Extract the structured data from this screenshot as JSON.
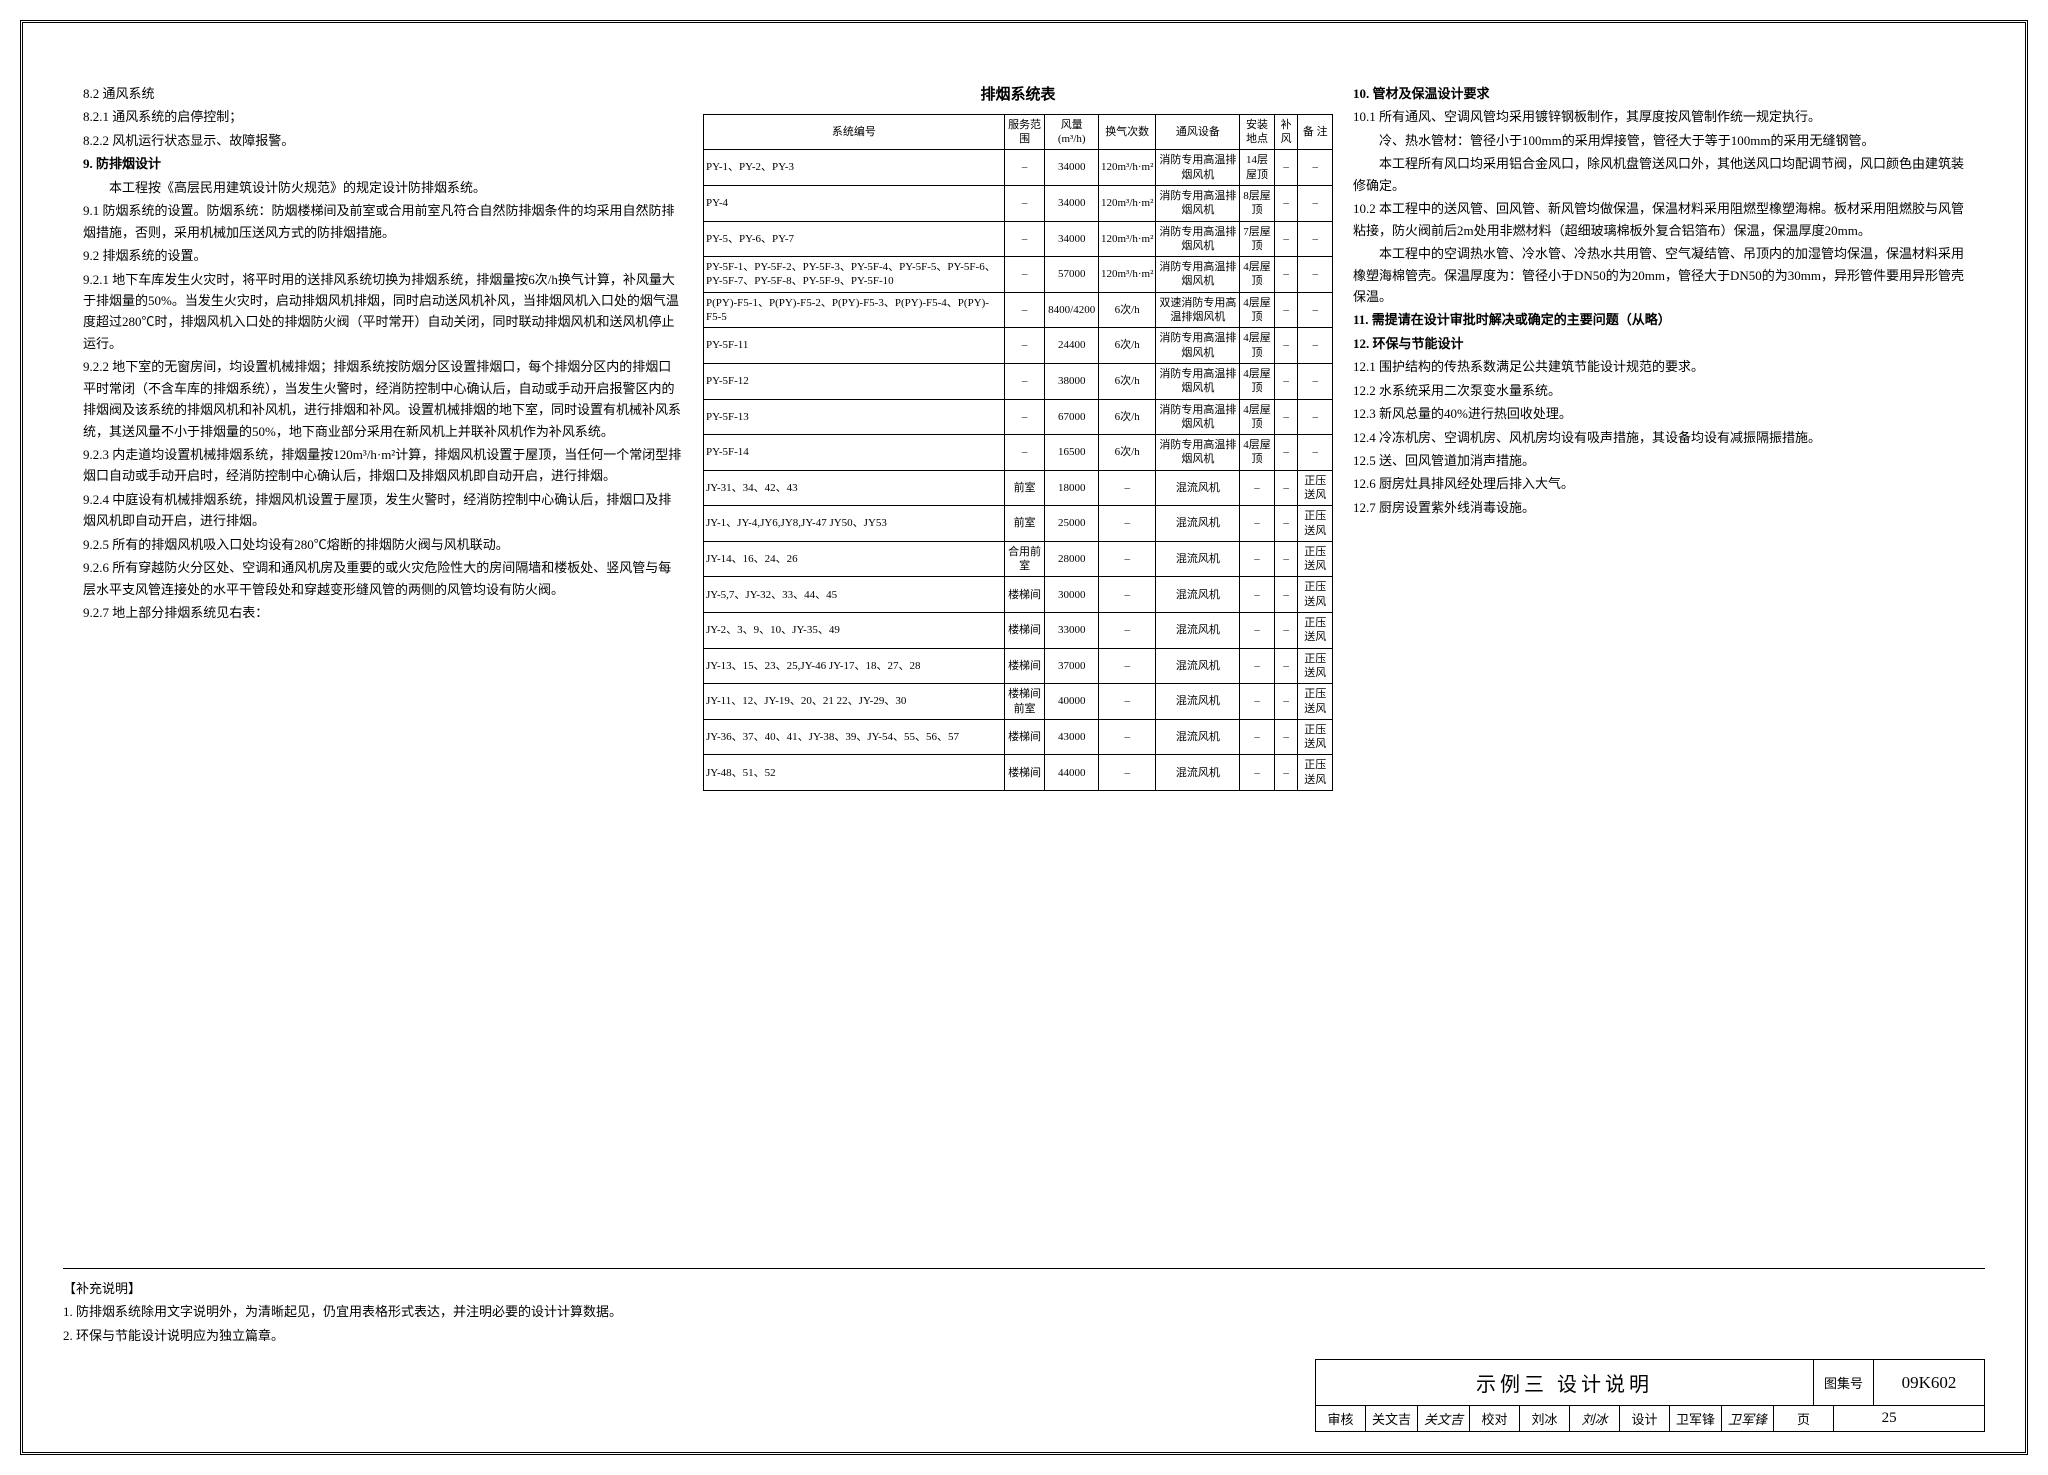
{
  "leftColumn": {
    "lines": [
      "8.2 通风系统",
      "8.2.1 通风系统的启停控制；",
      "8.2.2 风机运行状态显示、故障报警。",
      "9. 防排烟设计",
      "　　本工程按《高层民用建筑设计防火规范》的规定设计防排烟系统。",
      "9.1 防烟系统的设置。防烟系统：防烟楼梯间及前室或合用前室凡符合自然防排烟条件的均采用自然防排烟措施，否则，采用机械加压送风方式的防排烟措施。",
      "9.2 排烟系统的设置。",
      "9.2.1 地下车库发生火灾时，将平时用的送排风系统切换为排烟系统，排烟量按6次/h换气计算，补风量大于排烟量的50%。当发生火灾时，启动排烟风机排烟，同时启动送风机补风，当排烟风机入口处的烟气温度超过280℃时，排烟风机入口处的排烟防火阀（平时常开）自动关闭，同时联动排烟风机和送风机停止运行。",
      "9.2.2 地下室的无窗房间，均设置机械排烟；排烟系统按防烟分区设置排烟口，每个排烟分区内的排烟口平时常闭（不含车库的排烟系统），当发生火警时，经消防控制中心确认后，自动或手动开启报警区内的排烟阀及该系统的排烟风机和补风机，进行排烟和补风。设置机械排烟的地下室，同时设置有机械补风系统，其送风量不小于排烟量的50%，地下商业部分采用在新风机上并联补风机作为补风系统。",
      "9.2.3 内走道均设置机械排烟系统，排烟量按120m³/h·m²计算，排烟风机设置于屋顶，当任何一个常闭型排烟口自动或手动开启时，经消防控制中心确认后，排烟口及排烟风机即自动开启，进行排烟。",
      "9.2.4 中庭设有机械排烟系统，排烟风机设置于屋顶，发生火警时，经消防控制中心确认后，排烟口及排烟风机即自动开启，进行排烟。",
      "9.2.5 所有的排烟风机吸入口处均设有280℃熔断的排烟防火阀与风机联动。",
      "9.2.6 所有穿越防火分区处、空调和通风机房及重要的或火灾危险性大的房间隔墙和楼板处、竖风管与每层水平支风管连接处的水平干管段处和穿越变形缝风管的两侧的风管均设有防火阀。",
      "9.2.7 地上部分排烟系统见右表："
    ],
    "boldIdx": [
      3
    ]
  },
  "table": {
    "title": "排烟系统表",
    "headers": [
      "系统编号",
      "服务范围",
      "风量(m³/h)",
      "换气次数",
      "通风设备",
      "安装地点",
      "补 风",
      "备 注"
    ],
    "rows": [
      [
        "PY-1、PY-2、PY-3",
        "–",
        "34000",
        "120m³/h·m²",
        "消防专用高温排烟风机",
        "14层屋顶",
        "–",
        "–"
      ],
      [
        "PY-4",
        "–",
        "34000",
        "120m³/h·m²",
        "消防专用高温排烟风机",
        "8层屋顶",
        "–",
        "–"
      ],
      [
        "PY-5、PY-6、PY-7",
        "–",
        "34000",
        "120m³/h·m²",
        "消防专用高温排烟风机",
        "7层屋顶",
        "–",
        "–"
      ],
      [
        "PY-5F-1、PY-5F-2、PY-5F-3、PY-5F-4、PY-5F-5、PY-5F-6、PY-5F-7、PY-5F-8、PY-5F-9、PY-5F-10",
        "–",
        "57000",
        "120m³/h·m²",
        "消防专用高温排烟风机",
        "4层屋顶",
        "–",
        "–"
      ],
      [
        "P(PY)-F5-1、P(PY)-F5-2、P(PY)-F5-3、P(PY)-F5-4、P(PY)-F5-5",
        "–",
        "8400/4200",
        "6次/h",
        "双速消防专用高温排烟风机",
        "4层屋顶",
        "–",
        "–"
      ],
      [
        "PY-5F-11",
        "–",
        "24400",
        "6次/h",
        "消防专用高温排烟风机",
        "4层屋顶",
        "–",
        "–"
      ],
      [
        "PY-5F-12",
        "–",
        "38000",
        "6次/h",
        "消防专用高温排烟风机",
        "4层屋顶",
        "–",
        "–"
      ],
      [
        "PY-5F-13",
        "–",
        "67000",
        "6次/h",
        "消防专用高温排烟风机",
        "4层屋顶",
        "–",
        "–"
      ],
      [
        "PY-5F-14",
        "–",
        "16500",
        "6次/h",
        "消防专用高温排烟风机",
        "4层屋顶",
        "–",
        "–"
      ],
      [
        "JY-31、34、42、43",
        "前室",
        "18000",
        "–",
        "混流风机",
        "–",
        "–",
        "正压送风"
      ],
      [
        "JY-1、JY-4,JY6,JY8,JY-47 JY50、JY53",
        "前室",
        "25000",
        "–",
        "混流风机",
        "–",
        "–",
        "正压送风"
      ],
      [
        "JY-14、16、24、26",
        "合用前室",
        "28000",
        "–",
        "混流风机",
        "–",
        "–",
        "正压送风"
      ],
      [
        "JY-5,7、JY-32、33、44、45",
        "楼梯间",
        "30000",
        "–",
        "混流风机",
        "–",
        "–",
        "正压送风"
      ],
      [
        "JY-2、3、9、10、JY-35、49",
        "楼梯间",
        "33000",
        "–",
        "混流风机",
        "–",
        "–",
        "正压送风"
      ],
      [
        "JY-13、15、23、25,JY-46 JY-17、18、27、28",
        "楼梯间",
        "37000",
        "–",
        "混流风机",
        "–",
        "–",
        "正压送风"
      ],
      [
        "JY-11、12、JY-19、20、21 22、JY-29、30",
        "楼梯间前室",
        "40000",
        "–",
        "混流风机",
        "–",
        "–",
        "正压送风"
      ],
      [
        "JY-36、37、40、41、JY-38、39、JY-54、55、56、57",
        "楼梯间",
        "43000",
        "–",
        "混流风机",
        "–",
        "–",
        "正压送风"
      ],
      [
        "JY-48、51、52",
        "楼梯间",
        "44000",
        "–",
        "混流风机",
        "–",
        "–",
        "正压送风"
      ]
    ]
  },
  "rightColumn": {
    "lines": [
      "10. 管材及保温设计要求",
      "10.1 所有通风、空调风管均采用镀锌钢板制作，其厚度按风管制作统一规定执行。",
      "　　冷、热水管材：管径小于100mm的采用焊接管，管径大于等于100mm的采用无缝钢管。",
      "　　本工程所有风口均采用铝合金风口，除风机盘管送风口外，其他送风口均配调节阀，风口颜色由建筑装修确定。",
      "10.2 本工程中的送风管、回风管、新风管均做保温，保温材料采用阻燃型橡塑海棉。板材采用阻燃胶与风管粘接，防火阀前后2m处用非燃材料（超细玻璃棉板外复合铝箔布）保温，保温厚度20mm。",
      "　　本工程中的空调热水管、冷水管、冷热水共用管、空气凝结管、吊顶内的加湿管均保温，保温材料采用橡塑海棉管壳。保温厚度为：管径小于DN50的为20mm，管径大于DN50的为30mm，异形管件要用异形管壳保温。",
      "11. 需提请在设计审批时解决或确定的主要问题（从略）",
      "12. 环保与节能设计",
      "12.1 围护结构的传热系数满足公共建筑节能设计规范的要求。",
      "12.2 水系统采用二次泵变水量系统。",
      "12.3 新风总量的40%进行热回收处理。",
      "12.4 冷冻机房、空调机房、风机房均设有吸声措施，其设备均设有减振隔振措施。",
      "12.5 送、回风管道加消声措施。",
      "12.6 厨房灶具排风经处理后排入大气。",
      "12.7 厨房设置紫外线消毒设施。"
    ],
    "boldIdx": [
      0,
      6,
      7
    ]
  },
  "suppNote": {
    "title": "【补充说明】",
    "items": [
      "1. 防排烟系统除用文字说明外，为清晰起见，仍宜用表格形式表达，并注明必要的设计计算数据。",
      "2. 环保与节能设计说明应为独立篇章。"
    ]
  },
  "titleBlock": {
    "mainTitle": "示例三  设计说明",
    "atlasLabel": "图集号",
    "atlasNo": "09K602",
    "pageLabel": "页",
    "pageNo": "25",
    "reviewLabel": "审核",
    "reviewer": "关文吉",
    "reviewerSig": "关文吉",
    "proofLabel": "校对",
    "proofer": "刘冰",
    "prooferSig": "刘冰",
    "designLabel": "设计",
    "designer": "卫军锋",
    "designerSig": "卫军锋"
  }
}
